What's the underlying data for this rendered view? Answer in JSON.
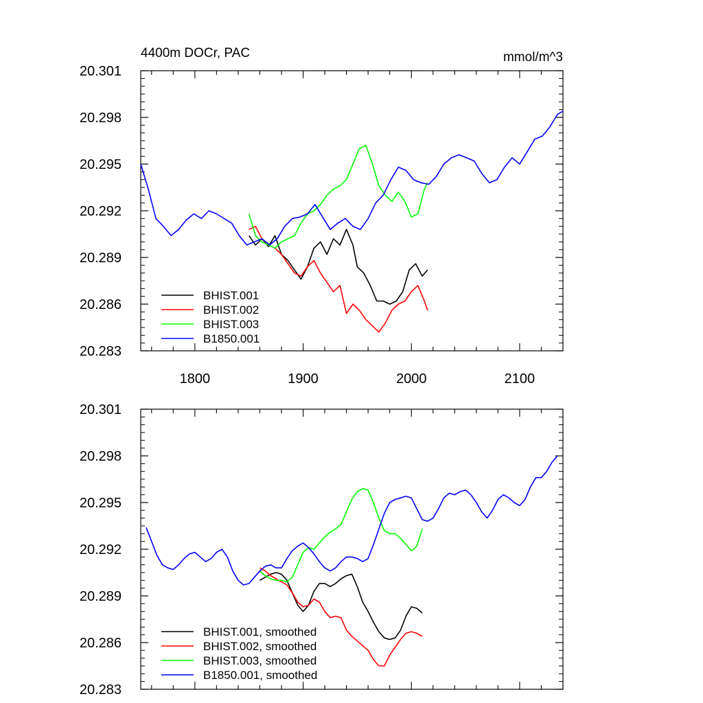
{
  "chart_data": [
    {
      "type": "line",
      "title_left": "4400m DOCr, PAC",
      "title_right": "mmol/m^3",
      "xlim": [
        1750,
        2140
      ],
      "ylim": [
        20.283,
        20.301
      ],
      "xticks": [
        1800,
        1900,
        2000,
        2100
      ],
      "xtick_labels": [
        "1800",
        "1900",
        "2000",
        "2100"
      ],
      "yticks": [
        20.283,
        20.286,
        20.289,
        20.292,
        20.295,
        20.298,
        20.301
      ],
      "ytick_labels": [
        "20.283",
        "20.286",
        "20.289",
        "20.292",
        "20.295",
        "20.298",
        "20.301"
      ],
      "grid": false,
      "legend_position": "bottom-left",
      "series": [
        {
          "name": "BHIST.001",
          "color": "#000000",
          "x": [
            1850,
            1856,
            1862,
            1868,
            1874,
            1880,
            1886,
            1892,
            1898,
            1904,
            1910,
            1916,
            1922,
            1928,
            1934,
            1940,
            1946,
            1950,
            1956,
            1962,
            1968,
            1974,
            1980,
            1986,
            1992,
            1998,
            2004,
            2010,
            2015
          ],
          "y": [
            20.2904,
            20.2898,
            20.2902,
            20.2897,
            20.2904,
            20.2892,
            20.2888,
            20.2882,
            20.2876,
            20.2884,
            20.2896,
            20.29,
            20.2892,
            20.2902,
            20.2898,
            20.2908,
            20.2898,
            20.2884,
            20.288,
            20.2872,
            20.2862,
            20.2862,
            20.286,
            20.2862,
            20.2868,
            20.2882,
            20.2886,
            20.2878,
            20.2882
          ]
        },
        {
          "name": "BHIST.002",
          "color": "#ff0000",
          "x": [
            1850,
            1856,
            1862,
            1868,
            1874,
            1880,
            1886,
            1892,
            1898,
            1904,
            1910,
            1916,
            1922,
            1928,
            1934,
            1940,
            1946,
            1952,
            1958,
            1964,
            1970,
            1976,
            1982,
            1988,
            1994,
            2000,
            2006,
            2012,
            2015
          ],
          "y": [
            20.2908,
            20.291,
            20.2902,
            20.2898,
            20.2896,
            20.2892,
            20.2886,
            20.288,
            20.2878,
            20.2884,
            20.2888,
            20.288,
            20.2874,
            20.2868,
            20.2872,
            20.2854,
            20.286,
            20.2856,
            20.285,
            20.2846,
            20.2842,
            20.2848,
            20.2856,
            20.286,
            20.2862,
            20.2868,
            20.2872,
            20.2862,
            20.2856
          ]
        },
        {
          "name": "BHIST.003",
          "color": "#00ff00",
          "x": [
            1850,
            1856,
            1862,
            1868,
            1874,
            1880,
            1886,
            1892,
            1898,
            1904,
            1910,
            1916,
            1922,
            1928,
            1934,
            1940,
            1946,
            1952,
            1958,
            1964,
            1970,
            1976,
            1982,
            1988,
            1994,
            2000,
            2006,
            2012,
            2015
          ],
          "y": [
            20.2918,
            20.2904,
            20.29,
            20.2898,
            20.2896,
            20.29,
            20.2902,
            20.2904,
            20.2912,
            20.2918,
            20.292,
            20.2924,
            20.293,
            20.2934,
            20.2936,
            20.294,
            20.295,
            20.296,
            20.2962,
            20.295,
            20.2936,
            20.293,
            20.2926,
            20.2932,
            20.2926,
            20.2916,
            20.2918,
            20.2934,
            20.2938
          ]
        },
        {
          "name": "B1850.001",
          "color": "#0000ff",
          "x": [
            1750,
            1757,
            1764,
            1771,
            1778,
            1785,
            1792,
            1799,
            1806,
            1813,
            1820,
            1827,
            1834,
            1841,
            1848,
            1855,
            1862,
            1869,
            1876,
            1883,
            1890,
            1897,
            1904,
            1911,
            1918,
            1925,
            1932,
            1939,
            1946,
            1953,
            1960,
            1967,
            1974,
            1981,
            1988,
            1995,
            2002,
            2009,
            2016,
            2023,
            2030,
            2037,
            2044,
            2051,
            2058,
            2065,
            2072,
            2079,
            2086,
            2093,
            2100,
            2107,
            2114,
            2121,
            2128,
            2135,
            2140
          ],
          "y": [
            20.295,
            20.2934,
            20.2915,
            20.291,
            20.2904,
            20.2908,
            20.2914,
            20.2918,
            20.2915,
            20.292,
            20.2918,
            20.2915,
            20.2912,
            20.2904,
            20.2898,
            20.29,
            20.2902,
            20.2898,
            20.2902,
            20.291,
            20.2915,
            20.2916,
            20.2918,
            20.2924,
            20.2916,
            20.2908,
            20.2912,
            20.2915,
            20.291,
            20.2908,
            20.2915,
            20.2925,
            20.293,
            20.294,
            20.2948,
            20.2946,
            20.294,
            20.2938,
            20.2937,
            20.2942,
            20.295,
            20.2954,
            20.2956,
            20.2954,
            20.2952,
            20.2944,
            20.2938,
            20.294,
            20.2948,
            20.2954,
            20.295,
            20.2958,
            20.2966,
            20.2968,
            20.2974,
            20.2982,
            20.2984
          ]
        }
      ]
    },
    {
      "type": "line",
      "xlim": [
        1750,
        2140
      ],
      "ylim": [
        20.283,
        20.301
      ],
      "xticks": [
        1800,
        1900,
        2000,
        2100
      ],
      "yticks": [
        20.283,
        20.286,
        20.289,
        20.292,
        20.295,
        20.298,
        20.301
      ],
      "ytick_labels": [
        "20.283",
        "20.286",
        "20.289",
        "20.292",
        "20.295",
        "20.298",
        "20.301"
      ],
      "grid": false,
      "legend_position": "bottom-left",
      "series": [
        {
          "name": "BHIST.001, smoothed",
          "color": "#000000",
          "x": [
            1860,
            1865,
            1870,
            1875,
            1880,
            1885,
            1890,
            1895,
            1900,
            1905,
            1910,
            1915,
            1920,
            1925,
            1930,
            1935,
            1940,
            1945,
            1950,
            1955,
            1960,
            1965,
            1970,
            1975,
            1980,
            1985,
            1990,
            1995,
            2000,
            2005,
            2010
          ],
          "y": [
            20.29,
            20.2902,
            20.2904,
            20.2905,
            20.2904,
            20.29,
            20.2892,
            20.2884,
            20.288,
            20.2884,
            20.2893,
            20.2898,
            20.2898,
            20.2896,
            20.2898,
            20.2901,
            20.2903,
            20.2904,
            20.2896,
            20.2886,
            20.288,
            20.2873,
            20.2867,
            20.2863,
            20.2862,
            20.2863,
            20.2868,
            20.2877,
            20.2883,
            20.2882,
            20.2879
          ]
        },
        {
          "name": "BHIST.002, smoothed",
          "color": "#ff0000",
          "x": [
            1860,
            1865,
            1870,
            1875,
            1880,
            1885,
            1890,
            1895,
            1900,
            1905,
            1910,
            1915,
            1920,
            1925,
            1930,
            1935,
            1940,
            1945,
            1950,
            1955,
            1960,
            1965,
            1970,
            1975,
            1980,
            1985,
            1990,
            1995,
            2000,
            2005,
            2010
          ],
          "y": [
            20.2908,
            20.2906,
            20.2903,
            20.2901,
            20.2899,
            20.2897,
            20.2892,
            20.2886,
            20.2883,
            20.2884,
            20.2888,
            20.2886,
            20.288,
            20.2876,
            20.2877,
            20.2876,
            20.2868,
            20.2864,
            20.2861,
            20.2858,
            20.2855,
            20.2849,
            20.2845,
            20.2845,
            20.2852,
            20.2857,
            20.2862,
            20.2866,
            20.2867,
            20.2866,
            20.2864
          ]
        },
        {
          "name": "BHIST.003, smoothed",
          "color": "#00ff00",
          "x": [
            1860,
            1865,
            1870,
            1875,
            1880,
            1885,
            1890,
            1895,
            1900,
            1905,
            1910,
            1915,
            1920,
            1925,
            1930,
            1935,
            1940,
            1945,
            1950,
            1955,
            1960,
            1965,
            1970,
            1975,
            1980,
            1985,
            1990,
            1995,
            2000,
            2005,
            2010
          ],
          "y": [
            20.2906,
            20.2903,
            20.2901,
            20.29,
            20.29,
            20.2899,
            20.2902,
            20.291,
            20.2918,
            20.2921,
            20.292,
            20.2924,
            20.2928,
            20.2931,
            20.2933,
            20.2936,
            20.2944,
            20.2952,
            20.2957,
            20.2959,
            20.2958,
            20.295,
            20.294,
            20.2932,
            20.293,
            20.293,
            20.2927,
            20.2923,
            20.2919,
            20.2922,
            20.2933
          ]
        },
        {
          "name": "B1850.001, smoothed",
          "color": "#0000ff",
          "x": [
            1755,
            1760,
            1765,
            1770,
            1775,
            1780,
            1785,
            1790,
            1795,
            1800,
            1805,
            1810,
            1815,
            1820,
            1825,
            1830,
            1835,
            1840,
            1845,
            1850,
            1855,
            1860,
            1865,
            1870,
            1875,
            1880,
            1885,
            1890,
            1895,
            1900,
            1905,
            1910,
            1915,
            1920,
            1925,
            1930,
            1935,
            1940,
            1945,
            1950,
            1955,
            1960,
            1965,
            1970,
            1975,
            1980,
            1985,
            1990,
            1995,
            2000,
            2005,
            2010,
            2015,
            2020,
            2025,
            2030,
            2035,
            2040,
            2045,
            2050,
            2055,
            2060,
            2065,
            2070,
            2075,
            2080,
            2085,
            2090,
            2095,
            2100,
            2105,
            2110,
            2115,
            2120,
            2125,
            2130,
            2135
          ],
          "y": [
            20.2934,
            20.2925,
            20.2916,
            20.291,
            20.2908,
            20.2907,
            20.291,
            20.2914,
            20.2917,
            20.2918,
            20.2915,
            20.2912,
            20.2914,
            20.2918,
            20.292,
            20.2915,
            20.2906,
            20.29,
            20.2897,
            20.2898,
            20.2902,
            20.2906,
            20.2909,
            20.291,
            20.2908,
            20.2908,
            20.2914,
            20.2919,
            20.2922,
            20.2924,
            20.2921,
            20.2917,
            20.2912,
            20.2908,
            20.2906,
            20.2908,
            20.2912,
            20.2915,
            20.2915,
            20.2914,
            20.2912,
            20.2914,
            20.2923,
            20.2933,
            20.2943,
            20.295,
            20.2952,
            20.2953,
            20.2954,
            20.2953,
            20.2946,
            20.2939,
            20.2938,
            20.294,
            20.2946,
            20.2953,
            20.2956,
            20.2955,
            20.2957,
            20.2958,
            20.2955,
            20.295,
            20.2944,
            20.294,
            20.2945,
            20.2952,
            20.2955,
            20.2953,
            20.295,
            20.2948,
            20.2952,
            20.296,
            20.2966,
            20.2966,
            20.297,
            20.2976,
            20.298
          ]
        }
      ]
    }
  ]
}
